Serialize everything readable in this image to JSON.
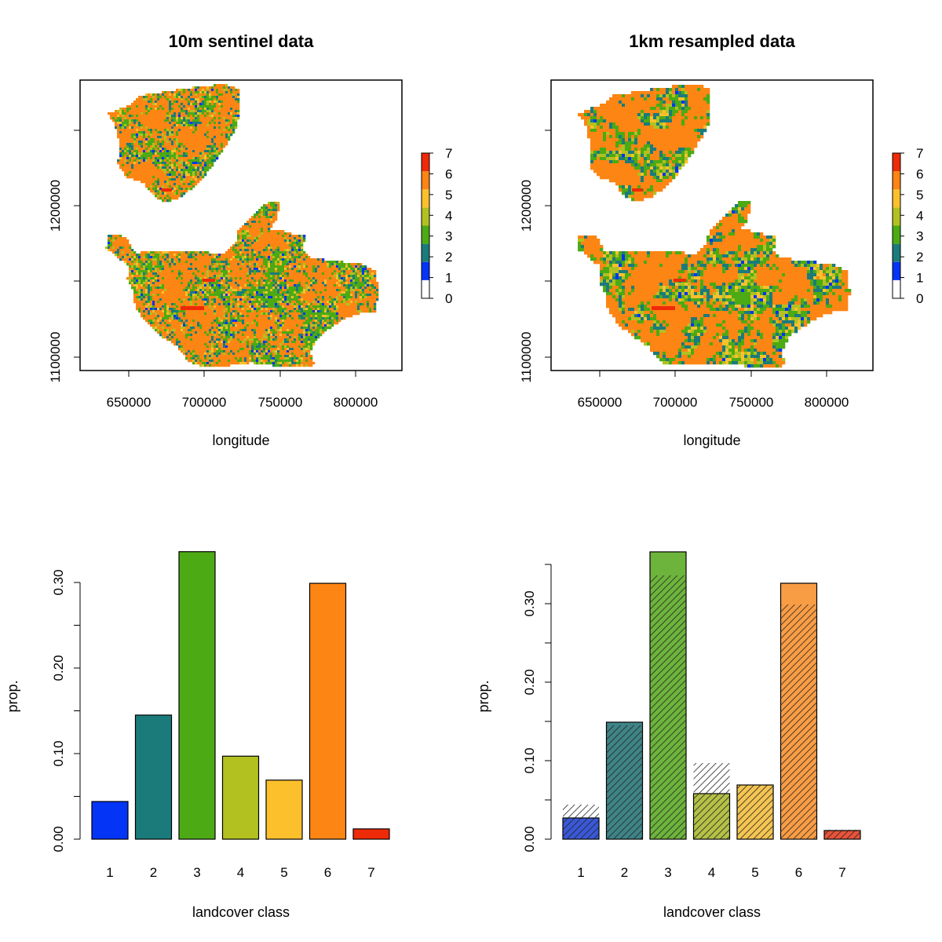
{
  "colors": {
    "class_0": "#ffffff",
    "class_1": "#0434f5",
    "class_2": "#1b7b7b",
    "class_3": "#4caa14",
    "class_4": "#b2c120",
    "class_5": "#fcc02c",
    "class_6": "#fc8514",
    "class_7": "#ee2a08"
  },
  "chart_data": [
    {
      "type": "heatmap",
      "title": "10m sentinel data",
      "xlabel": "longitude",
      "ylabel": "",
      "xlim": [
        620000,
        830000
      ],
      "ylim": [
        1090000,
        1280000
      ],
      "x_ticks": [
        "650000",
        "700000",
        "750000",
        "800000"
      ],
      "y_ticks": [
        "1100000",
        "1200000"
      ],
      "legend": {
        "placement": "right",
        "labels": [
          "0",
          "1",
          "2",
          "3",
          "4",
          "5",
          "6",
          "7"
        ]
      }
    },
    {
      "type": "heatmap",
      "title": "1km resampled data",
      "xlabel": "longitude",
      "ylabel": "",
      "xlim": [
        620000,
        830000
      ],
      "ylim": [
        1090000,
        1280000
      ],
      "x_ticks": [
        "650000",
        "700000",
        "750000",
        "800000"
      ],
      "y_ticks": [
        "1100000",
        "1200000"
      ],
      "legend": {
        "placement": "right",
        "labels": [
          "0",
          "1",
          "2",
          "3",
          "4",
          "5",
          "6",
          "7"
        ]
      }
    },
    {
      "type": "bar",
      "title": "",
      "xlabel": "landcover class",
      "ylabel": "prop.",
      "categories": [
        "1",
        "2",
        "3",
        "4",
        "5",
        "6",
        "7"
      ],
      "values": [
        0.044,
        0.145,
        0.336,
        0.097,
        0.069,
        0.299,
        0.012
      ],
      "ylim": [
        0,
        0.34
      ],
      "y_ticks": [
        "0.00",
        "0.10",
        "0.20",
        "0.30"
      ]
    },
    {
      "type": "bar",
      "title": "",
      "xlabel": "landcover class",
      "ylabel": "prop.",
      "categories": [
        "1",
        "2",
        "3",
        "4",
        "5",
        "6",
        "7"
      ],
      "series": [
        {
          "values": [
            0.027,
            0.149,
            0.366,
            0.058,
            0.069,
            0.326,
            0.011
          ]
        },
        {
          "values": [
            0.044,
            0.145,
            0.336,
            0.097,
            0.069,
            0.299,
            0.012
          ]
        }
      ],
      "ylim": [
        0,
        0.35
      ],
      "y_ticks": [
        "0.00",
        "0.10",
        "0.20",
        "0.30"
      ]
    }
  ]
}
